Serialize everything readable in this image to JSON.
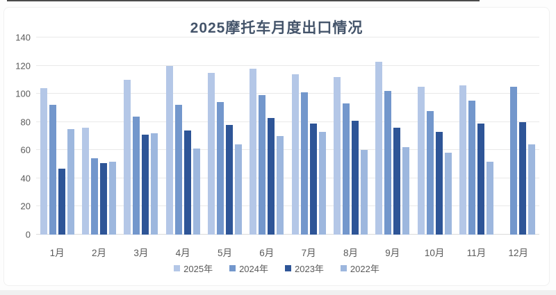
{
  "chart_data": {
    "type": "bar",
    "title": "2025摩托车月度出口情况",
    "categories": [
      "1月",
      "2月",
      "3月",
      "4月",
      "5月",
      "6月",
      "7月",
      "8月",
      "9月",
      "10月",
      "11月",
      "12月"
    ],
    "series": [
      {
        "name": "2025年",
        "color": "#b4c7e7",
        "values": [
          104,
          76,
          110,
          120,
          115,
          118,
          114,
          112,
          123,
          105,
          106,
          null
        ]
      },
      {
        "name": "2024年",
        "color": "#7397cc",
        "values": [
          92,
          54,
          84,
          92,
          94,
          99,
          101,
          93,
          102,
          88,
          95,
          105
        ]
      },
      {
        "name": "2023年",
        "color": "#2e5597",
        "values": [
          47,
          51,
          71,
          74,
          78,
          83,
          79,
          81,
          76,
          73,
          79,
          80
        ]
      },
      {
        "name": "2022年",
        "color": "#9db7de",
        "values": [
          75,
          52,
          72,
          61,
          64,
          70,
          73,
          60,
          62,
          58,
          52,
          64
        ]
      }
    ],
    "ylim": [
      0,
      140
    ],
    "ytick_step": 20,
    "grid": true,
    "legend_position": "bottom",
    "colors": {
      "title": "#44546a",
      "tick_text": "#595959",
      "gridline": "#e9e9e9"
    }
  }
}
